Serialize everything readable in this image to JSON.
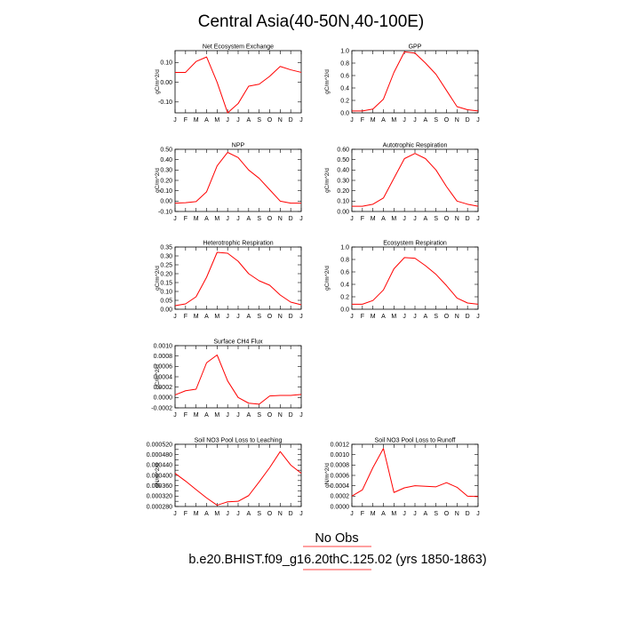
{
  "figure": {
    "title": "Central Asia(40-50N,40-100E)",
    "footer_obs": "No Obs",
    "footer_case": "b.e20.BHIST.f09_g16.20thC.125.02 (yrs 1850-1863)",
    "line_color": "#ff0000",
    "frame_color": "#000000"
  },
  "chart_data": [
    {
      "type": "line",
      "title": "Net Ecosystem Exchange",
      "ylabel": "gC/m^2/d",
      "x": [
        "J",
        "F",
        "M",
        "A",
        "M",
        "J",
        "J",
        "A",
        "S",
        "O",
        "N",
        "D",
        "J"
      ],
      "values": [
        0.05,
        0.05,
        0.105,
        0.128,
        0.0,
        -0.155,
        -0.108,
        -0.02,
        -0.01,
        0.03,
        0.08,
        0.063,
        0.05
      ],
      "ylim": [
        -0.155,
        0.16
      ],
      "yticks": [
        -0.1,
        0.0,
        0.1
      ],
      "yticklabels": [
        "-0.10",
        "0.00",
        "0.10"
      ]
    },
    {
      "type": "line",
      "title": "GPP",
      "ylabel": "gC/m^2/d",
      "x": [
        "J",
        "F",
        "M",
        "A",
        "M",
        "J",
        "J",
        "A",
        "S",
        "O",
        "N",
        "D",
        "J"
      ],
      "values": [
        0.03,
        0.03,
        0.06,
        0.22,
        0.65,
        0.98,
        0.96,
        0.8,
        0.62,
        0.36,
        0.1,
        0.05,
        0.03
      ],
      "ylim": [
        0.0,
        1.0
      ],
      "yticks": [
        0.0,
        0.2,
        0.4,
        0.6,
        0.8,
        1.0
      ],
      "yticklabels": [
        "0.0",
        "0.2",
        "0.4",
        "0.6",
        "0.8",
        "1.0"
      ]
    },
    {
      "type": "line",
      "title": "NPP",
      "ylabel": "gC/m^2/d",
      "x": [
        "J",
        "F",
        "M",
        "A",
        "M",
        "J",
        "J",
        "A",
        "S",
        "O",
        "N",
        "D",
        "J"
      ],
      "values": [
        -0.02,
        -0.015,
        -0.005,
        0.09,
        0.34,
        0.47,
        0.42,
        0.3,
        0.22,
        0.11,
        0.0,
        -0.02,
        -0.02
      ],
      "ylim": [
        -0.1,
        0.5
      ],
      "yticks": [
        -0.1,
        0.0,
        0.1,
        0.2,
        0.3,
        0.4,
        0.5
      ],
      "yticklabels": [
        "-0.10",
        "0.00",
        "0.10",
        "0.20",
        "0.30",
        "0.40",
        "0.50"
      ]
    },
    {
      "type": "line",
      "title": "Autotrophic Respiration",
      "ylabel": "gC/m^2/d",
      "x": [
        "J",
        "F",
        "M",
        "A",
        "M",
        "J",
        "J",
        "A",
        "S",
        "O",
        "N",
        "D",
        "J"
      ],
      "values": [
        0.05,
        0.05,
        0.07,
        0.13,
        0.32,
        0.51,
        0.56,
        0.51,
        0.4,
        0.24,
        0.1,
        0.07,
        0.05
      ],
      "ylim": [
        0.0,
        0.6
      ],
      "yticks": [
        0.0,
        0.1,
        0.2,
        0.3,
        0.4,
        0.5,
        0.6
      ],
      "yticklabels": [
        "0.00",
        "0.10",
        "0.20",
        "0.30",
        "0.40",
        "0.50",
        "0.60"
      ]
    },
    {
      "type": "line",
      "title": "Heterotrophic Respiration",
      "ylabel": "gC/m^2/d",
      "x": [
        "J",
        "F",
        "M",
        "A",
        "M",
        "J",
        "J",
        "A",
        "S",
        "O",
        "N",
        "D",
        "J"
      ],
      "values": [
        0.02,
        0.03,
        0.07,
        0.18,
        0.32,
        0.315,
        0.27,
        0.2,
        0.16,
        0.135,
        0.08,
        0.04,
        0.025
      ],
      "ylim": [
        0.0,
        0.35
      ],
      "yticks": [
        0.0,
        0.05,
        0.1,
        0.15,
        0.2,
        0.25,
        0.3,
        0.35
      ],
      "yticklabels": [
        "0.00",
        "0.05",
        "0.10",
        "0.15",
        "0.20",
        "0.25",
        "0.30",
        "0.35"
      ]
    },
    {
      "type": "line",
      "title": "Ecosystem Respiration",
      "ylabel": "gC/m^2/d",
      "x": [
        "J",
        "F",
        "M",
        "A",
        "M",
        "J",
        "J",
        "A",
        "S",
        "O",
        "N",
        "D",
        "J"
      ],
      "values": [
        0.08,
        0.08,
        0.14,
        0.31,
        0.65,
        0.83,
        0.82,
        0.7,
        0.56,
        0.38,
        0.18,
        0.1,
        0.08
      ],
      "ylim": [
        0.0,
        1.0
      ],
      "yticks": [
        0.0,
        0.2,
        0.4,
        0.6,
        0.8,
        1.0
      ],
      "yticklabels": [
        "0.0",
        "0.2",
        "0.4",
        "0.6",
        "0.8",
        "1.0"
      ]
    },
    {
      "type": "line",
      "title": "Surface CH4 Flux",
      "ylabel": "gC/m^2/d",
      "x": [
        "J",
        "F",
        "M",
        "A",
        "M",
        "J",
        "J",
        "A",
        "S",
        "O",
        "N",
        "D",
        "J"
      ],
      "values": [
        5e-05,
        0.00013,
        0.00016,
        0.00067,
        0.00082,
        0.00032,
        0.0,
        -0.00011,
        -0.00013,
        3e-05,
        4e-05,
        4e-05,
        6e-05
      ],
      "ylim": [
        -0.0002,
        0.001
      ],
      "yticks": [
        -0.0002,
        0.0,
        0.0002,
        0.0004,
        0.0006,
        0.0008,
        0.001
      ],
      "yticklabels": [
        "-0.0002",
        "0.0000",
        "0.0002",
        "0.0004",
        "0.0006",
        "0.0008",
        "0.0010"
      ]
    },
    {
      "type": "line",
      "title": "Soil NO3 Pool Loss to Leaching",
      "ylabel": "gN/m^2/d",
      "x": [
        "J",
        "F",
        "M",
        "A",
        "M",
        "J",
        "J",
        "A",
        "S",
        "O",
        "N",
        "D",
        "J"
      ],
      "values": [
        0.000408,
        0.000378,
        0.000345,
        0.000313,
        0.000285,
        0.000298,
        0.0003,
        0.000322,
        0.000375,
        0.00043,
        0.000492,
        0.00044,
        0.000408
      ],
      "ylim": [
        0.00028,
        0.00052
      ],
      "yticks": [
        0.00028,
        0.0003,
        0.00032,
        0.00034,
        0.00036,
        0.00038,
        0.0004,
        0.00042,
        0.00044,
        0.00046,
        0.00048,
        0.0005,
        0.00052
      ],
      "yticklabels": [
        "0.000280",
        "",
        "0.000320",
        "",
        "0.000360",
        "",
        "0.000400",
        "",
        "0.000440",
        "",
        "0.000480",
        "",
        "0.000520"
      ]
    },
    {
      "type": "line",
      "title": "Soil NO3 Pool Loss to Runoff",
      "ylabel": "gN/m^2/d",
      "x": [
        "J",
        "F",
        "M",
        "A",
        "M",
        "J",
        "J",
        "A",
        "S",
        "O",
        "N",
        "D",
        "J"
      ],
      "values": [
        0.0002,
        0.00032,
        0.00075,
        0.00112,
        0.00027,
        0.00036,
        0.0004,
        0.00039,
        0.00038,
        0.00046,
        0.00037,
        0.0002,
        0.00019
      ],
      "ylim": [
        0.0,
        0.0012
      ],
      "yticks": [
        0.0,
        0.0002,
        0.0004,
        0.0006,
        0.0008,
        0.001,
        0.0012
      ],
      "yticklabels": [
        "0.0000",
        "0.0002",
        "0.0004",
        "0.0006",
        "0.0008",
        "0.0010",
        "0.0012"
      ]
    }
  ]
}
